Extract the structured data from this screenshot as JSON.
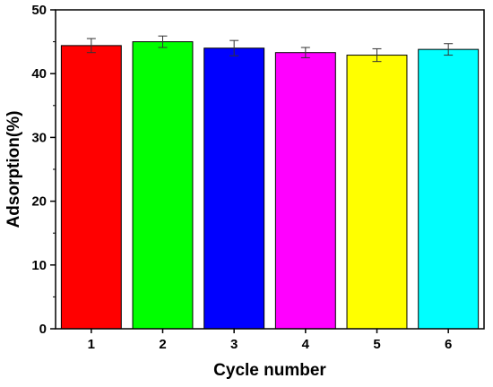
{
  "chart_data": {
    "type": "bar",
    "categories": [
      "1",
      "2",
      "3",
      "4",
      "5",
      "6"
    ],
    "values": [
      44.4,
      45.0,
      44.0,
      43.3,
      42.9,
      43.8
    ],
    "errors": [
      1.1,
      0.9,
      1.2,
      0.8,
      1.0,
      0.9
    ],
    "colors": [
      "#ff0000",
      "#00ff00",
      "#0000ff",
      "#ff00ff",
      "#ffff00",
      "#00ffff"
    ],
    "xlabel": "Cycle number",
    "ylabel": "Adsorption(%)",
    "ylim": [
      0,
      50
    ],
    "yticks": [
      "0",
      "10",
      "20",
      "30",
      "40",
      "50"
    ],
    "grid": false,
    "legend": "none"
  }
}
